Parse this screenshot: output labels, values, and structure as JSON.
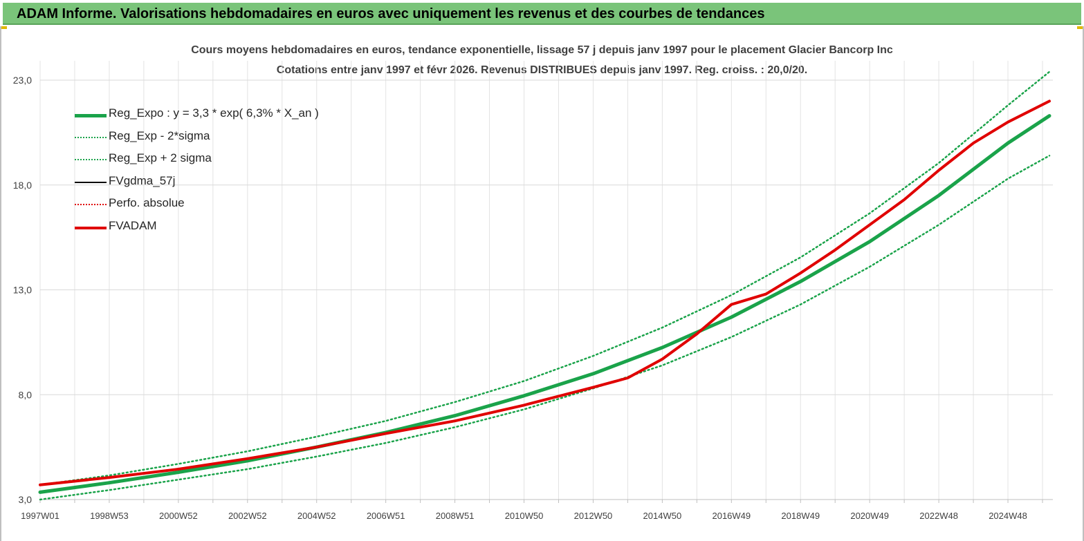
{
  "header": {
    "title": "ADAM Informe. Valorisations hebdomadaires en euros avec uniquement les revenus et des courbes de tendances"
  },
  "chart_data": {
    "type": "line",
    "title": "Cours moyens hebdomadaires en euros, tendance exponentielle, lissage 57 j depuis janv 1997 pour le placement Glacier Bancorp Inc",
    "subtitle": "Cotations entre janv 1997 et févr 2026. Revenus DISTRIBUES depuis janv 1997. Reg. croiss. : 20,0/20.",
    "xlabel": "",
    "ylabel": "",
    "ylim": [
      3,
      23
    ],
    "xlim": [
      1997.0,
      2026.3
    ],
    "y_ticks": [
      3,
      8,
      13,
      18,
      23
    ],
    "y_tick_labels": [
      "3,0",
      "8,0",
      "13,0",
      "18,0",
      "23,0"
    ],
    "x_ticks": [
      1997.0,
      1999.0,
      2001.0,
      2003.0,
      2005.0,
      2007.0,
      2009.0,
      2011.0,
      2013.0,
      2015.0,
      2017.0,
      2019.0,
      2021.0,
      2023.0,
      2025.0
    ],
    "x_tick_labels": [
      "1997W01",
      "1998W53",
      "2000W52",
      "2002W52",
      "2004W52",
      "2006W51",
      "2008W51",
      "2010W50",
      "2012W50",
      "2014W50",
      "2016W49",
      "2018W49",
      "2020W49",
      "2022W48",
      "2024W48"
    ],
    "grid": true,
    "legend_position": "top-left",
    "series": [
      {
        "name": "Reg_Expo : y = 3,3 * exp( 6,3% *  X_an )",
        "color": "#1aa34a",
        "style": "solid",
        "x": [
          1997.0,
          1999.0,
          2001.0,
          2003.0,
          2005.0,
          2007.0,
          2009.0,
          2011.0,
          2013.0,
          2015.0,
          2017.0,
          2019.0,
          2021.0,
          2023.0,
          2025.0,
          2026.2
        ],
        "y": [
          3.35,
          3.8,
          4.3,
          4.85,
          5.5,
          6.2,
          7.0,
          7.95,
          9.0,
          10.25,
          11.7,
          13.4,
          15.3,
          17.5,
          20.0,
          21.3
        ]
      },
      {
        "name": "Reg_Exp - 2*sigma",
        "color": "#1aa34a",
        "style": "dotted",
        "x": [
          1997.0,
          1999.0,
          2001.0,
          2003.0,
          2005.0,
          2007.0,
          2009.0,
          2011.0,
          2013.0,
          2015.0,
          2017.0,
          2019.0,
          2021.0,
          2023.0,
          2025.0,
          2026.2
        ],
        "y": [
          3.0,
          3.45,
          3.95,
          4.45,
          5.05,
          5.7,
          6.45,
          7.3,
          8.3,
          9.4,
          10.75,
          12.3,
          14.1,
          16.1,
          18.3,
          19.4
        ]
      },
      {
        "name": "Reg_Exp + 2 sigma",
        "color": "#1aa34a",
        "style": "dotted",
        "x": [
          1997.0,
          1999.0,
          2001.0,
          2003.0,
          2005.0,
          2007.0,
          2009.0,
          2011.0,
          2013.0,
          2015.0,
          2017.0,
          2019.0,
          2021.0,
          2023.0,
          2025.0,
          2026.2
        ],
        "y": [
          3.7,
          4.15,
          4.7,
          5.3,
          6.0,
          6.75,
          7.65,
          8.65,
          9.85,
          11.2,
          12.75,
          14.55,
          16.65,
          19.05,
          21.8,
          23.4
        ]
      },
      {
        "name": "FVgdma_57j",
        "color": "#000000",
        "style": "solid",
        "x": [
          1997.0,
          1999.0,
          2001.0,
          2003.0,
          2005.0,
          2007.0,
          2009.0,
          2011.0,
          2013.0,
          2014.0,
          2015.0,
          2016.0,
          2017.0,
          2018.0,
          2019.0,
          2020.0,
          2021.0,
          2022.0,
          2023.0,
          2024.0,
          2025.0,
          2026.2
        ],
        "y": [
          3.7,
          4.05,
          4.45,
          4.95,
          5.5,
          6.15,
          6.75,
          7.5,
          8.35,
          8.8,
          9.7,
          10.9,
          12.3,
          12.8,
          13.8,
          14.9,
          16.1,
          17.3,
          18.7,
          20.0,
          21.0,
          22.0
        ]
      },
      {
        "name": "Perfo. absolue",
        "color": "#e00000",
        "style": "dotted",
        "x": [
          1997.0,
          1999.0,
          2001.0,
          2003.0,
          2005.0,
          2007.0,
          2009.0,
          2011.0,
          2013.0,
          2014.0,
          2015.0,
          2016.0,
          2017.0,
          2018.0,
          2019.0,
          2020.0,
          2021.0,
          2022.0,
          2023.0,
          2024.0,
          2025.0,
          2026.2
        ],
        "y": [
          3.7,
          4.05,
          4.45,
          4.95,
          5.5,
          6.15,
          6.75,
          7.5,
          8.35,
          8.8,
          9.7,
          10.9,
          12.3,
          12.8,
          13.8,
          14.9,
          16.1,
          17.3,
          18.7,
          20.0,
          21.0,
          22.0
        ]
      },
      {
        "name": "FVADAM",
        "color": "#e00000",
        "style": "solid",
        "x": [
          1997.0,
          1999.0,
          2001.0,
          2003.0,
          2005.0,
          2007.0,
          2009.0,
          2011.0,
          2013.0,
          2014.0,
          2015.0,
          2016.0,
          2017.0,
          2018.0,
          2019.0,
          2020.0,
          2021.0,
          2022.0,
          2023.0,
          2024.0,
          2025.0,
          2026.2
        ],
        "y": [
          3.7,
          4.05,
          4.45,
          4.95,
          5.5,
          6.15,
          6.75,
          7.5,
          8.35,
          8.8,
          9.7,
          10.9,
          12.3,
          12.8,
          13.8,
          14.9,
          16.1,
          17.3,
          18.7,
          20.0,
          21.0,
          22.0
        ]
      }
    ]
  }
}
